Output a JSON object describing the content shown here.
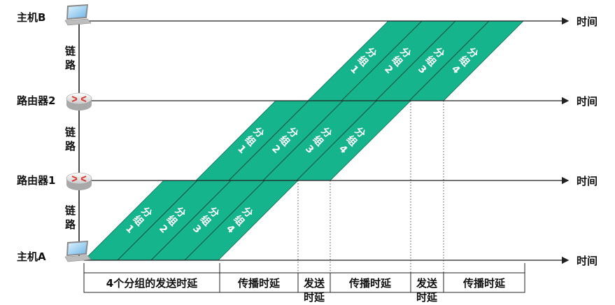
{
  "nodes": {
    "host_b": "主机B",
    "router_2": "路由器2",
    "router_1": "路由器1",
    "host_a": "主机A"
  },
  "time_label": "时间",
  "link_label": [
    "链",
    "路"
  ],
  "packet_label": [
    "分",
    "组"
  ],
  "packets": [
    "1",
    "2",
    "3",
    "4"
  ],
  "segments": {
    "tx4": "4个分组的发送时延",
    "prop1": "传播时延",
    "tx1_line1": "发送",
    "tx1_line2": "时延",
    "prop2": "传播时延",
    "tx2_line1": "发送",
    "tx2_line2": "时延",
    "prop3": "传播时延"
  },
  "colors": {
    "band": "#16b48c",
    "band_border": "#0d6f55"
  },
  "icons": {
    "host": "laptop-icon",
    "router": "router-icon"
  }
}
